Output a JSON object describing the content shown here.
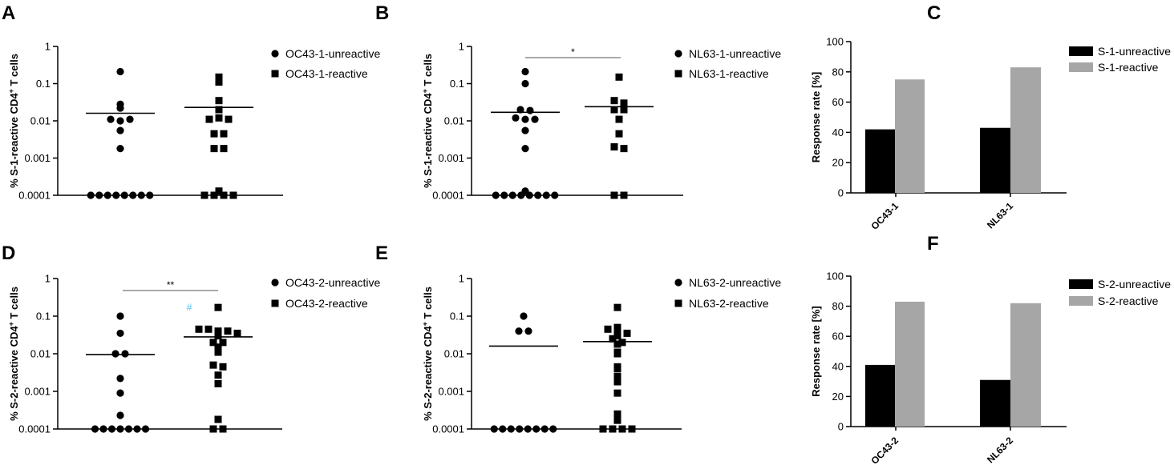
{
  "chart_data": [
    {
      "panel": "A",
      "type": "scatter",
      "ylabel": "% S-1-reactive CD4",
      "ylabel_sup": "+",
      "ylabel_tail": " T cells",
      "yscale": "log",
      "ylim": [
        0.0001,
        1
      ],
      "yticks": [
        "1",
        "0.1",
        "0.01",
        "0.001",
        "0.0001"
      ],
      "series": [
        {
          "name": "OC43-1-unreactive",
          "marker": "circle",
          "mean": 0.016,
          "values": [
            0.21,
            0.028,
            0.022,
            0.011,
            0.01,
            0.011,
            0.0055,
            0.0018,
            0.0001,
            0.0001,
            0.0001,
            0.0001,
            0.0001,
            0.0001,
            0.0001,
            0.0001
          ]
        },
        {
          "name": "OC43-1-reactive",
          "marker": "square",
          "mean": 0.023,
          "values": [
            0.15,
            0.11,
            0.035,
            0.02,
            0.011,
            0.012,
            0.011,
            0.0045,
            0.0045,
            0.0018,
            0.0018,
            0.00013,
            0.0001,
            0.0001,
            0.0001,
            0.0001
          ]
        }
      ],
      "significance": null
    },
    {
      "panel": "B",
      "type": "scatter",
      "ylabel": "% S-1-reactive CD4",
      "ylabel_sup": "+",
      "ylabel_tail": " T cells",
      "yscale": "log",
      "ylim": [
        0.0001,
        1
      ],
      "yticks": [
        "1",
        "0.1",
        "0.01",
        "0.001",
        "0.0001"
      ],
      "series": [
        {
          "name": "NL63-1-unreactive",
          "marker": "circle",
          "mean": 0.017,
          "values": [
            0.21,
            0.1,
            0.02,
            0.019,
            0.012,
            0.011,
            0.011,
            0.0055,
            0.0018,
            0.00013,
            0.0001,
            0.0001,
            0.0001,
            0.0001,
            0.0001,
            0.0001,
            0.0001,
            0.0001
          ]
        },
        {
          "name": "NL63-1-reactive",
          "marker": "square",
          "mean": 0.024,
          "values": [
            0.15,
            0.035,
            0.03,
            0.02,
            0.02,
            0.011,
            0.0045,
            0.002,
            0.0018,
            0.0001,
            0.0001
          ]
        }
      ],
      "significance": "*"
    },
    {
      "panel": "C",
      "type": "bar",
      "ylabel": "Response rate [%]",
      "ylim": [
        0,
        100
      ],
      "yticks": [
        "0",
        "20",
        "40",
        "60",
        "80",
        "100"
      ],
      "categories": [
        "OC43-1",
        "NL63-1"
      ],
      "series": [
        {
          "name": "S-1-unreactive",
          "color": "#000000",
          "values": [
            42,
            43
          ]
        },
        {
          "name": "S-1-reactive",
          "color": "#a6a6a6",
          "values": [
            75,
            83
          ]
        }
      ]
    },
    {
      "panel": "D",
      "type": "scatter",
      "ylabel": "% S-2-reactive CD4",
      "ylabel_sup": "+",
      "ylabel_tail": " T cells",
      "yscale": "log",
      "ylim": [
        0.0001,
        1
      ],
      "yticks": [
        "1",
        "0.1",
        "0.01",
        "0.001",
        "0.0001"
      ],
      "series": [
        {
          "name": "OC43-2-unreactive",
          "marker": "circle",
          "mean": 0.0095,
          "values": [
            0.1,
            0.035,
            0.01,
            0.01,
            0.0022,
            0.0009,
            0.00023,
            0.0001,
            0.0001,
            0.0001,
            0.0001,
            0.0001,
            0.0001,
            0.0001
          ]
        },
        {
          "name": "OC43-2-reactive",
          "marker": "square",
          "mean": 0.028,
          "values": [
            0.17,
            0.045,
            0.045,
            0.04,
            0.04,
            0.035,
            0.03,
            0.02,
            0.02,
            0.015,
            0.011,
            0.005,
            0.0045,
            0.0027,
            0.0016,
            0.00018,
            0.0001,
            0.0001
          ]
        }
      ],
      "significance": "**",
      "annotation": "#",
      "annotation_color": "#4fc3f7"
    },
    {
      "panel": "E",
      "type": "scatter",
      "ylabel": "% S-2-reactive CD4",
      "ylabel_sup": "+",
      "ylabel_tail": " T cells",
      "yscale": "log",
      "ylim": [
        0.0001,
        1
      ],
      "yticks": [
        "1",
        "0.1",
        "0.01",
        "0.001",
        "0.0001"
      ],
      "series": [
        {
          "name": "NL63-2-unreactive",
          "marker": "circle",
          "mean": 0.016,
          "values": [
            0.1,
            0.04,
            0.04,
            0.0001,
            0.0001,
            0.0001,
            0.0001,
            0.0001,
            0.0001,
            0.0001,
            0.0001
          ]
        },
        {
          "name": "NL63-2-reactive",
          "marker": "square",
          "mean": 0.021,
          "values": [
            0.17,
            0.05,
            0.045,
            0.045,
            0.035,
            0.03,
            0.025,
            0.02,
            0.018,
            0.011,
            0.01,
            0.0045,
            0.004,
            0.0025,
            0.0018,
            0.0009,
            0.00025,
            0.00017,
            0.0001,
            0.0001,
            0.0001,
            0.0001
          ]
        }
      ],
      "significance": null
    },
    {
      "panel": "F",
      "type": "bar",
      "ylabel": "Response rate [%]",
      "ylim": [
        0,
        100
      ],
      "yticks": [
        "0",
        "20",
        "40",
        "60",
        "80",
        "100"
      ],
      "categories": [
        "OC43-2",
        "NL63-2"
      ],
      "series": [
        {
          "name": "S-2-unreactive",
          "color": "#000000",
          "values": [
            41,
            31
          ]
        },
        {
          "name": "S-2-reactive",
          "color": "#a6a6a6",
          "values": [
            83,
            82
          ]
        }
      ]
    }
  ]
}
